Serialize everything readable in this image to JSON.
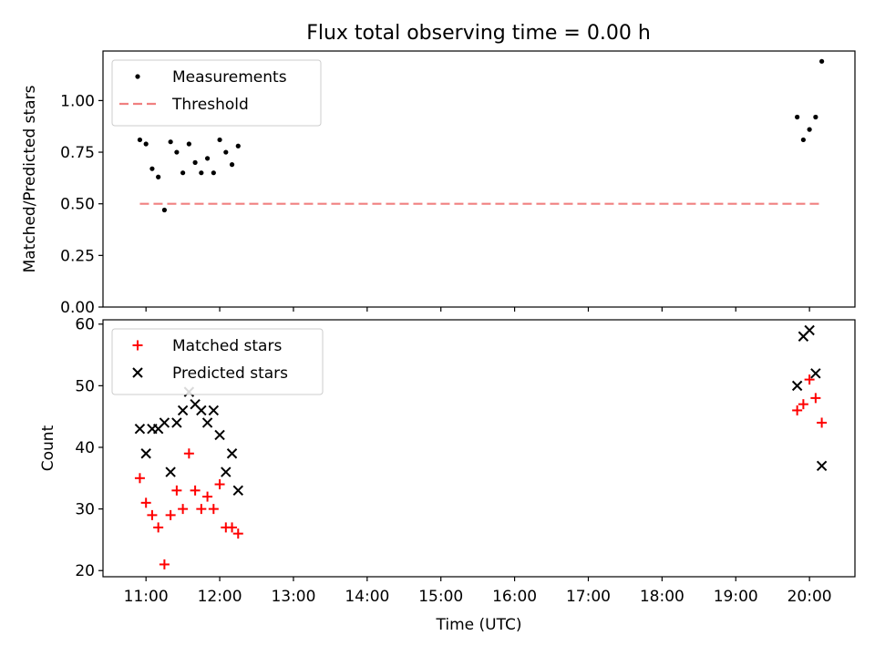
{
  "title": "Flux total observing time = 0.00 h",
  "chart_data": [
    {
      "type": "scatter",
      "ylabel": "Matched/Predicted stars",
      "xlabel": "",
      "ylim": [
        0,
        1.24
      ],
      "yticks": [
        "0.00",
        "0.25",
        "0.50",
        "0.75",
        "1.00"
      ],
      "ytick_values": [
        0,
        0.25,
        0.5,
        0.75,
        1.0
      ],
      "legend_position": "top-left",
      "series": [
        {
          "name": "Measurements",
          "marker": "dot",
          "color": "#000000",
          "x": [
            "10:55",
            "11:00",
            "11:05",
            "11:10",
            "11:15",
            "11:20",
            "11:25",
            "11:30",
            "11:35",
            "11:40",
            "11:45",
            "11:50",
            "11:55",
            "12:00",
            "12:05",
            "12:10",
            "12:15",
            "19:50",
            "19:55",
            "20:00",
            "20:05",
            "20:10"
          ],
          "y": [
            0.81,
            0.79,
            0.67,
            0.63,
            0.47,
            0.8,
            0.75,
            0.65,
            0.79,
            0.7,
            0.65,
            0.72,
            0.65,
            0.81,
            0.75,
            0.69,
            0.78,
            0.92,
            0.81,
            0.86,
            0.92,
            1.19
          ]
        }
      ],
      "threshold": {
        "name": "Threshold",
        "value": 0.5,
        "x_from": "10:55",
        "x_to": "20:10",
        "color": "#f08080",
        "style": "dashed"
      }
    },
    {
      "type": "scatter",
      "ylabel": "Count",
      "xlabel": "Time (UTC)",
      "ylim": [
        19,
        60.7
      ],
      "yticks": [
        "20",
        "30",
        "40",
        "50",
        "60"
      ],
      "ytick_values": [
        20,
        30,
        40,
        50,
        60
      ],
      "xlim": [
        "10:25",
        "20:37"
      ],
      "xticks": [
        "11:00",
        "12:00",
        "13:00",
        "14:00",
        "15:00",
        "16:00",
        "17:00",
        "18:00",
        "19:00",
        "20:00"
      ],
      "legend_position": "top-left",
      "series": [
        {
          "name": "Matched stars",
          "marker": "plus",
          "color": "#ff0000",
          "x": [
            "10:55",
            "11:00",
            "11:05",
            "11:10",
            "11:15",
            "11:20",
            "11:25",
            "11:30",
            "11:35",
            "11:40",
            "11:45",
            "11:50",
            "11:55",
            "12:00",
            "12:05",
            "12:10",
            "12:15",
            "19:50",
            "19:55",
            "20:00",
            "20:05",
            "20:10"
          ],
          "y": [
            35,
            31,
            29,
            27,
            21,
            29,
            33,
            30,
            39,
            33,
            30,
            32,
            30,
            34,
            27,
            27,
            26,
            46,
            47,
            51,
            48,
            44
          ]
        },
        {
          "name": "Predicted stars",
          "marker": "x",
          "color": "#000000",
          "x": [
            "10:55",
            "11:00",
            "11:05",
            "11:10",
            "11:15",
            "11:20",
            "11:25",
            "11:30",
            "11:35",
            "11:40",
            "11:45",
            "11:50",
            "11:55",
            "12:00",
            "12:05",
            "12:10",
            "12:15",
            "19:50",
            "19:55",
            "20:00",
            "20:05",
            "20:10"
          ],
          "y": [
            43,
            39,
            43,
            43,
            44,
            36,
            44,
            46,
            49,
            47,
            46,
            44,
            46,
            42,
            36,
            39,
            33,
            50,
            58,
            59,
            52,
            37
          ]
        }
      ]
    }
  ]
}
